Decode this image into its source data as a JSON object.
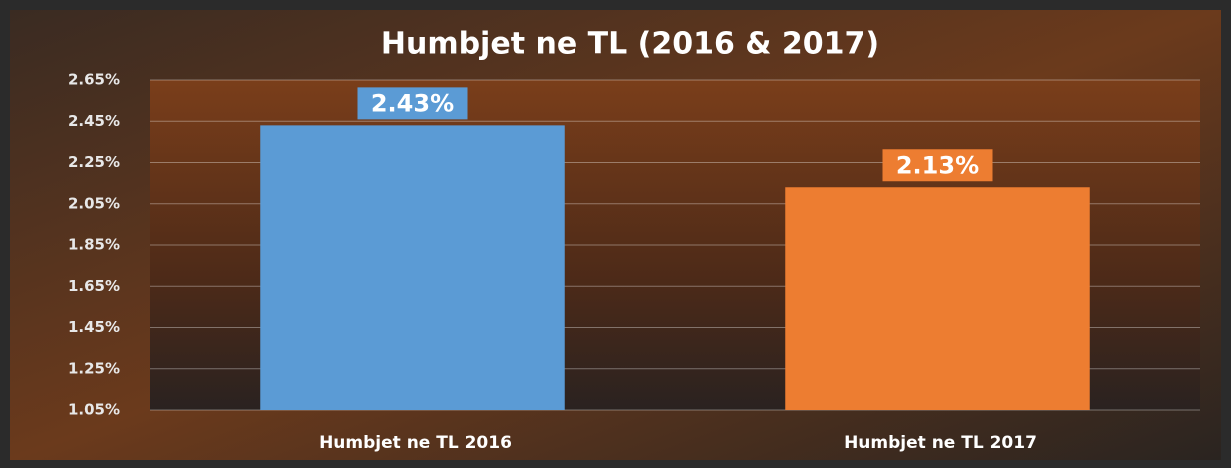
{
  "chart_data": {
    "type": "bar",
    "title": "Humbjet ne TL (2016 & 2017)",
    "categories": [
      "Humbjet ne TL 2016",
      "Humbjet ne TL 2017"
    ],
    "values": [
      2.43,
      2.13
    ],
    "value_labels": [
      "2.43%",
      "2.13%"
    ],
    "colors": [
      "#5b9bd5",
      "#ed7d31"
    ],
    "ylim": [
      1.05,
      2.65
    ],
    "yticks": [
      {
        "value": 1.05,
        "label": "1.05%"
      },
      {
        "value": 1.25,
        "label": "1.25%"
      },
      {
        "value": 1.45,
        "label": "1.45%"
      },
      {
        "value": 1.65,
        "label": "1.65%"
      },
      {
        "value": 1.85,
        "label": "1.85%"
      },
      {
        "value": 2.05,
        "label": "2.05%"
      },
      {
        "value": 2.25,
        "label": "2.25%"
      },
      {
        "value": 2.45,
        "label": "2.45%"
      },
      {
        "value": 2.65,
        "label": "2.65%"
      }
    ],
    "grid": true
  }
}
